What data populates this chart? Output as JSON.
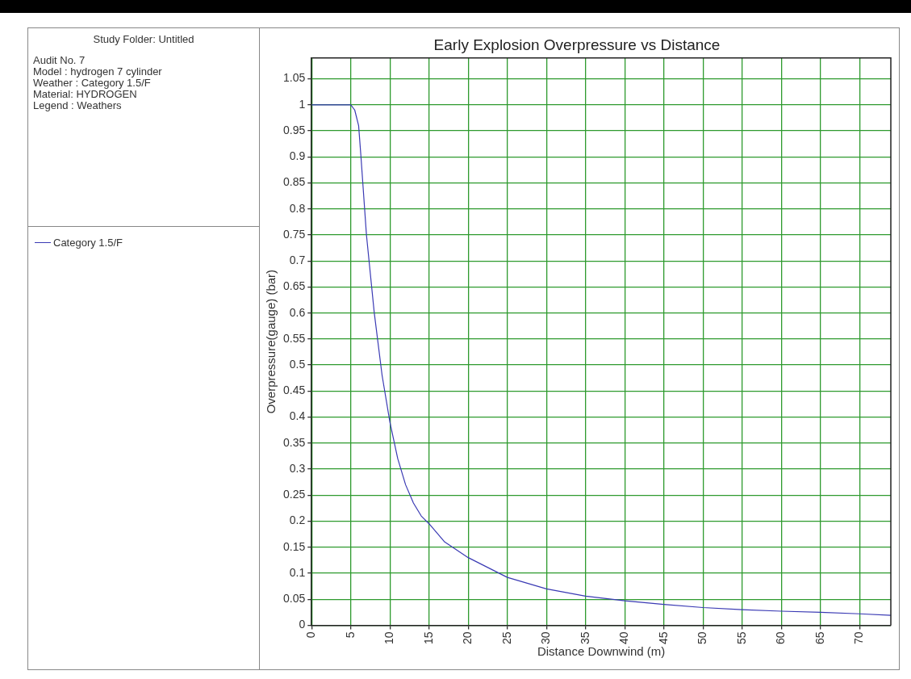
{
  "chart_data": {
    "type": "line",
    "title": "Early Explosion Overpressure vs Distance",
    "xlabel": "Distance Downwind (m)",
    "ylabel": "Overpressure(gauge) (bar)",
    "annotations": [
      "Study Folder: Untitled",
      "Audit No. 7",
      "Model : hydrogen 7 cylinder",
      "Weather : Category 1.5/F",
      "Material: HYDROGEN",
      "Legend : Weathers"
    ],
    "series": [
      {
        "name": "Category 1.5/F",
        "color": "#3a3ab4",
        "x": [
          0,
          5,
          5.5,
          6,
          6.3,
          7,
          8,
          9,
          10,
          11,
          12,
          13,
          14,
          15,
          17,
          20,
          25,
          30,
          35,
          40,
          45,
          50,
          55,
          60,
          65,
          70,
          74
        ],
        "values": [
          1,
          1,
          0.99,
          0.96,
          0.9,
          0.75,
          0.6,
          0.48,
          0.39,
          0.32,
          0.27,
          0.235,
          0.21,
          0.195,
          0.16,
          0.13,
          0.092,
          0.07,
          0.056,
          0.047,
          0.04,
          0.034,
          0.03,
          0.027,
          0.025,
          0.022,
          0.019
        ]
      }
    ],
    "xlim": [
      0,
      74
    ],
    "xticks": [
      0,
      5,
      10,
      15,
      20,
      25,
      30,
      35,
      40,
      45,
      50,
      55,
      60,
      65,
      70
    ],
    "ylim": [
      0,
      1.09
    ],
    "yticks": [
      0,
      0.05,
      0.1,
      0.15,
      0.2,
      0.25,
      0.3,
      0.35,
      0.4,
      0.45,
      0.5,
      0.55,
      0.6,
      0.65,
      0.7,
      0.75,
      0.8,
      0.85,
      0.9,
      0.95,
      1,
      1.05
    ],
    "grid": true,
    "legend": "left",
    "marker": "none",
    "line_style": "solid"
  }
}
